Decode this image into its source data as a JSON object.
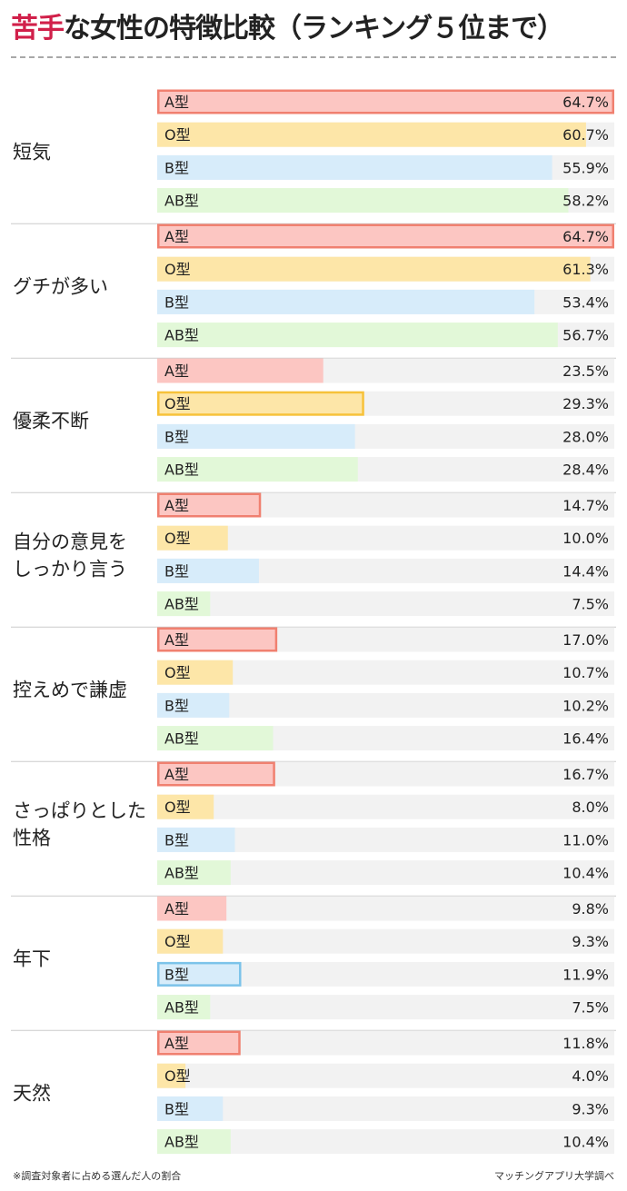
{
  "title": {
    "accent": "苦手",
    "rest": "な女性の特徴比較（ランキング５位まで）"
  },
  "footer": {
    "note": "※調査対象者に占める選んだ人の割合",
    "source": "マッチングアプリ大学調べ"
  },
  "colors": {
    "A型": {
      "fill": "#fcc6c2",
      "border": "#f08070"
    },
    "O型": {
      "fill": "#fde6a8",
      "border": "#f7c23a"
    },
    "B型": {
      "fill": "#d7ecfa",
      "border": "#7cc3ea"
    },
    "AB型": {
      "fill": "#e2f8d8",
      "border": "#9ad88a"
    },
    "track": "#f2f2f2",
    "separator": "#cccccc"
  },
  "chart_data": {
    "type": "bar",
    "orientation": "horizontal",
    "xlim": [
      0,
      64.7
    ],
    "value_format": "percent_1dp",
    "series_order": [
      "A型",
      "O型",
      "B型",
      "AB型"
    ],
    "groups": [
      {
        "label": "短気",
        "bars": [
          {
            "name": "A型",
            "value": 64.7,
            "highlight": true
          },
          {
            "name": "O型",
            "value": 60.7,
            "highlight": false
          },
          {
            "name": "B型",
            "value": 55.9,
            "highlight": false
          },
          {
            "name": "AB型",
            "value": 58.2,
            "highlight": false
          }
        ]
      },
      {
        "label": "グチが多い",
        "bars": [
          {
            "name": "A型",
            "value": 64.7,
            "highlight": true
          },
          {
            "name": "O型",
            "value": 61.3,
            "highlight": false
          },
          {
            "name": "B型",
            "value": 53.4,
            "highlight": false
          },
          {
            "name": "AB型",
            "value": 56.7,
            "highlight": false
          }
        ]
      },
      {
        "label": "優柔不断",
        "bars": [
          {
            "name": "A型",
            "value": 23.5,
            "highlight": false
          },
          {
            "name": "O型",
            "value": 29.3,
            "highlight": true
          },
          {
            "name": "B型",
            "value": 28.0,
            "highlight": false
          },
          {
            "name": "AB型",
            "value": 28.4,
            "highlight": false
          }
        ]
      },
      {
        "label": "自分の意見をしっかり言う",
        "label_lines": [
          "自分の意見を",
          "しっかり言う"
        ],
        "bars": [
          {
            "name": "A型",
            "value": 14.7,
            "highlight": true
          },
          {
            "name": "O型",
            "value": 10.0,
            "highlight": false
          },
          {
            "name": "B型",
            "value": 14.4,
            "highlight": false
          },
          {
            "name": "AB型",
            "value": 7.5,
            "highlight": false
          }
        ]
      },
      {
        "label": "控えめで謙虚",
        "bars": [
          {
            "name": "A型",
            "value": 17.0,
            "highlight": true
          },
          {
            "name": "O型",
            "value": 10.7,
            "highlight": false
          },
          {
            "name": "B型",
            "value": 10.2,
            "highlight": false
          },
          {
            "name": "AB型",
            "value": 16.4,
            "highlight": false
          }
        ]
      },
      {
        "label": "さっぱりとした性格",
        "label_lines": [
          "さっぱりとした",
          "性格"
        ],
        "bars": [
          {
            "name": "A型",
            "value": 16.7,
            "highlight": true
          },
          {
            "name": "O型",
            "value": 8.0,
            "highlight": false
          },
          {
            "name": "B型",
            "value": 11.0,
            "highlight": false
          },
          {
            "name": "AB型",
            "value": 10.4,
            "highlight": false
          }
        ]
      },
      {
        "label": "年下",
        "bars": [
          {
            "name": "A型",
            "value": 9.8,
            "highlight": false
          },
          {
            "name": "O型",
            "value": 9.3,
            "highlight": false
          },
          {
            "name": "B型",
            "value": 11.9,
            "highlight": true
          },
          {
            "name": "AB型",
            "value": 7.5,
            "highlight": false
          }
        ]
      },
      {
        "label": "天然",
        "bars": [
          {
            "name": "A型",
            "value": 11.8,
            "highlight": true
          },
          {
            "name": "O型",
            "value": 4.0,
            "highlight": false
          },
          {
            "name": "B型",
            "value": 9.3,
            "highlight": false
          },
          {
            "name": "AB型",
            "value": 10.4,
            "highlight": false
          }
        ]
      }
    ]
  }
}
